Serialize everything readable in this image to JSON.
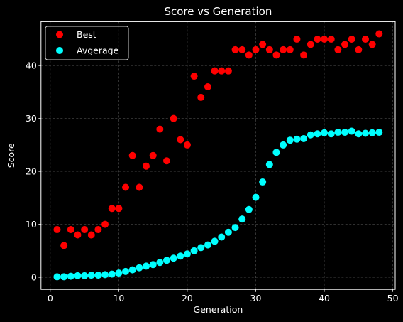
{
  "chart_data": {
    "type": "scatter",
    "title": "Score vs Generation",
    "xlabel": "Generation",
    "ylabel": "Score",
    "xlim": [
      -1.35,
      50.35
    ],
    "ylim": [
      -2.3,
      48.3
    ],
    "xticks": [
      0,
      10,
      20,
      30,
      40,
      50
    ],
    "yticks": [
      0,
      10,
      20,
      30,
      40
    ],
    "grid": true,
    "legend_position": "upper-left",
    "background": "#000000",
    "x": [
      1,
      2,
      3,
      4,
      5,
      6,
      7,
      8,
      9,
      10,
      11,
      12,
      13,
      14,
      15,
      16,
      17,
      18,
      19,
      20,
      21,
      22,
      23,
      24,
      25,
      26,
      27,
      28,
      29,
      30,
      31,
      32,
      33,
      34,
      35,
      36,
      37,
      38,
      39,
      40,
      41,
      42,
      43,
      44,
      45,
      46,
      47,
      48
    ],
    "series": [
      {
        "name": "Best",
        "color": "#ff0000",
        "values": [
          9,
          6,
          9,
          8,
          9,
          8,
          9,
          10,
          13,
          13,
          17,
          23,
          17,
          21,
          23,
          28,
          22,
          30,
          26,
          25,
          38,
          34,
          36,
          39,
          39,
          39,
          43,
          43,
          42,
          43,
          44,
          43,
          42,
          43,
          43,
          45,
          42,
          44,
          45,
          45,
          45,
          43,
          44,
          45,
          43,
          45,
          44,
          46
        ]
      },
      {
        "name": "Avgerage",
        "color": "#00ffff",
        "values": [
          0.1,
          0.1,
          0.2,
          0.3,
          0.3,
          0.4,
          0.4,
          0.5,
          0.6,
          0.8,
          1.1,
          1.4,
          1.8,
          2.1,
          2.4,
          2.8,
          3.2,
          3.6,
          4.0,
          4.4,
          5.0,
          5.6,
          6.1,
          6.8,
          7.6,
          8.5,
          9.4,
          11.0,
          12.8,
          15.1,
          18.0,
          21.3,
          23.6,
          25.0,
          25.9,
          26.1,
          26.2,
          26.9,
          27.1,
          27.3,
          27.1,
          27.4,
          27.4,
          27.6,
          27.1,
          27.2,
          27.3,
          27.4
        ]
      }
    ]
  }
}
